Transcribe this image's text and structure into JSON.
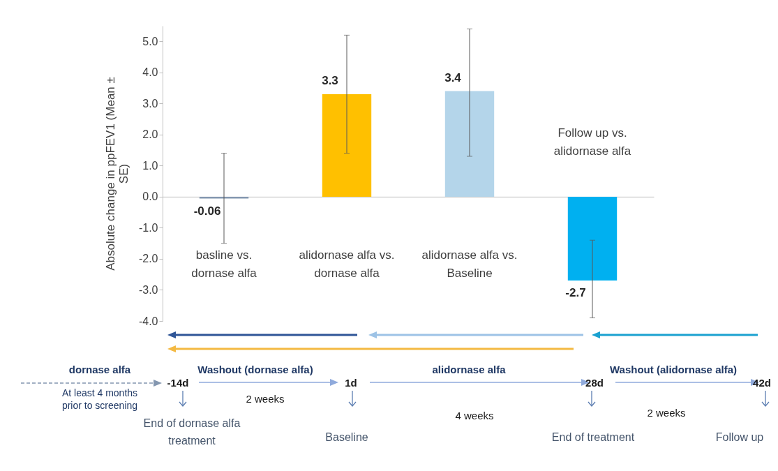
{
  "chart_data": {
    "type": "bar",
    "ylabel": "Absolute change in ppFEV1 (Mean ± SE)",
    "categories": [
      "basline vs. dornase alfa",
      "alidornase alfa vs. dornase alfa",
      "alidornase alfa vs. Baseline",
      "Follow up vs. alidornase alfa"
    ],
    "values": [
      -0.06,
      3.3,
      3.4,
      -2.7
    ],
    "colors": [
      "#8497b0",
      "#ffc000",
      "#b4d5ea",
      "#00b0f0"
    ],
    "errors": [
      [
        -1.5,
        1.4
      ],
      [
        1.4,
        5.2
      ],
      [
        1.3,
        5.4
      ],
      [
        -3.9,
        -1.4
      ]
    ],
    "data_labels": true,
    "ylim": [
      -4,
      5.5
    ],
    "yticks": [
      {
        "value": -4,
        "label": "-4.0"
      },
      {
        "value": -3,
        "label": "-3.0"
      },
      {
        "value": -2,
        "label": "-2.0"
      },
      {
        "value": -1,
        "label": "-1.0"
      },
      {
        "value": 0,
        "label": "0.0"
      },
      {
        "value": 1,
        "label": "1.0"
      },
      {
        "value": 2,
        "label": "2.0"
      },
      {
        "value": 3,
        "label": "3.0"
      },
      {
        "value": 4,
        "label": "4.0"
      },
      {
        "value": 5,
        "label": "5.0"
      }
    ],
    "annotations": [
      "dornase alfa",
      "At least 4 months prior to screening",
      "-14d",
      "Washout (dornase alfa)",
      "2 weeks",
      "1d",
      "alidornase alfa",
      "4 weeks",
      "28d",
      "Washout (alidornase alfa)",
      "2 weeks",
      "42d",
      "End of  dornase alfa treatment",
      "Baseline",
      "End of treatment",
      "Follow up"
    ]
  }
}
